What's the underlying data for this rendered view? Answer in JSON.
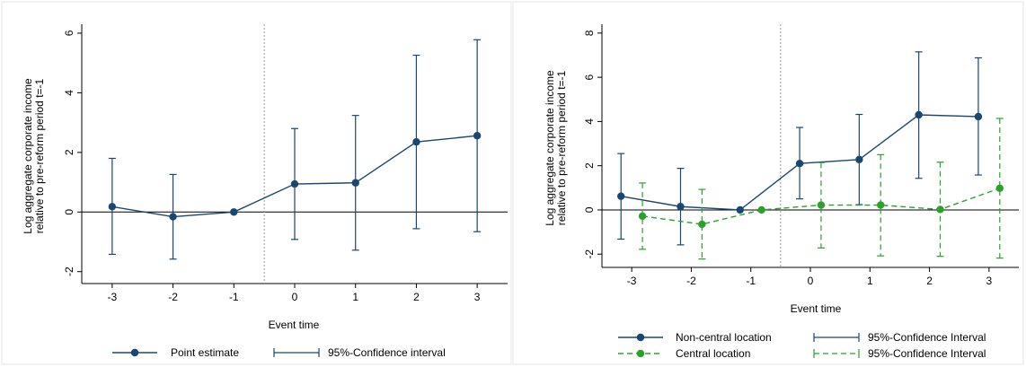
{
  "colors": {
    "navy": "#1a476f",
    "green": "#2ca02c",
    "panel_border": "#e6e6e6",
    "ref_line": "#999999"
  },
  "chart_data": [
    {
      "type": "line",
      "x": [
        -3,
        -2,
        -1,
        0,
        1,
        2,
        3
      ],
      "xticks": [
        "-3",
        "-2",
        "-1",
        "0",
        "1",
        "2",
        "3"
      ],
      "yticks": [
        "-2",
        "0",
        "2",
        "4",
        "6"
      ],
      "ylim": [
        -2.4,
        6.3
      ],
      "xlim": [
        -3.5,
        3.5
      ],
      "reference_vline": -0.5,
      "reference_hline": 0,
      "xlabel": "Event time",
      "ylabel": [
        "Log aggregate corporate income",
        "relative to pre-reform period t=-1"
      ],
      "grid": false,
      "legend_position": "bottom",
      "series": [
        {
          "name": "Point estimate",
          "ci_name": "95%-Confidence interval",
          "color": "navy",
          "dashed": false,
          "offset": 0,
          "values": [
            0.18,
            -0.16,
            0.0,
            0.94,
            0.98,
            2.35,
            2.56
          ],
          "ci_low": [
            -1.42,
            -1.58,
            0.0,
            -0.92,
            -1.28,
            -0.56,
            -0.66
          ],
          "ci_high": [
            1.8,
            1.26,
            0.0,
            2.8,
            3.24,
            5.26,
            5.78
          ]
        }
      ]
    },
    {
      "type": "line",
      "x": [
        -3,
        -2,
        -1,
        0,
        1,
        2,
        3
      ],
      "xticks": [
        "-3",
        "-2",
        "-1",
        "0",
        "1",
        "2",
        "3"
      ],
      "yticks": [
        "-2",
        "0",
        "2",
        "4",
        "6",
        "8"
      ],
      "ylim": [
        -2.6,
        8.4
      ],
      "xlim": [
        -3.5,
        3.5
      ],
      "reference_vline": -0.5,
      "reference_hline": 0,
      "xlabel": "Event time",
      "ylabel": [
        "Log aggregate corporate income",
        "relative to pre-reform period t=-1"
      ],
      "grid": false,
      "legend_position": "bottom",
      "series": [
        {
          "name": "Non-central location",
          "ci_name": "95%-Confidence Interval",
          "color": "navy",
          "dashed": false,
          "offset": -0.18,
          "values": [
            0.62,
            0.15,
            0.0,
            2.1,
            2.28,
            4.3,
            4.22
          ],
          "ci_low": [
            -1.32,
            -1.58,
            0.0,
            0.5,
            0.24,
            1.43,
            1.58
          ],
          "ci_high": [
            2.55,
            1.88,
            0.0,
            3.73,
            4.32,
            7.15,
            6.88
          ]
        },
        {
          "name": "Central location",
          "ci_name": "95%-Confidence Interval",
          "color": "green",
          "dashed": true,
          "offset": 0.18,
          "values": [
            -0.28,
            -0.65,
            0.0,
            0.22,
            0.22,
            0.02,
            0.98
          ],
          "ci_low": [
            -1.78,
            -2.22,
            0.0,
            -1.72,
            -2.08,
            -2.1,
            -2.18
          ],
          "ci_high": [
            1.22,
            0.93,
            0.0,
            2.14,
            2.5,
            2.16,
            4.14
          ]
        }
      ]
    }
  ]
}
